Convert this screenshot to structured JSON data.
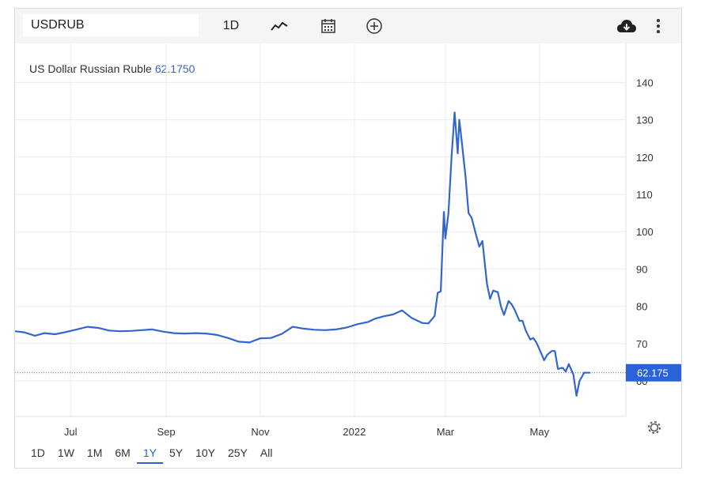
{
  "toolbar": {
    "symbol_value": "USDRUB",
    "interval_label": "1D",
    "icons": [
      "line-chart-icon",
      "calendar-icon",
      "plus-circle-icon",
      "cloud-download-icon",
      "more-vertical-icon"
    ]
  },
  "legend": {
    "name": "US Dollar Russian Ruble",
    "value": "62.1750"
  },
  "price_tag": "62.175",
  "periods": [
    {
      "label": "1D",
      "active": false
    },
    {
      "label": "1W",
      "active": false
    },
    {
      "label": "1M",
      "active": false
    },
    {
      "label": "6M",
      "active": false
    },
    {
      "label": "1Y",
      "active": true
    },
    {
      "label": "5Y",
      "active": false
    },
    {
      "label": "10Y",
      "active": false
    },
    {
      "label": "25Y",
      "active": false
    },
    {
      "label": "All",
      "active": false
    }
  ],
  "colors": {
    "line": "#3366cc",
    "accent": "#2962d9",
    "price_tag_bg": "#2962d9",
    "grid": "#ececec"
  },
  "chart_data": {
    "type": "line",
    "title": "US Dollar Russian Ruble",
    "x_tick_labels": [
      "Jul",
      "Sep",
      "Nov",
      "2022",
      "Mar",
      "May"
    ],
    "x_tick_dates": [
      "2021-07-01",
      "2021-09-01",
      "2021-11-01",
      "2022-01-01",
      "2022-03-01",
      "2022-05-01"
    ],
    "y_ticks": [
      60,
      70,
      80,
      90,
      100,
      110,
      120,
      130,
      140
    ],
    "ylim": [
      50,
      145
    ],
    "xlim": [
      "2021-05-26",
      "2022-06-26"
    ],
    "grid": true,
    "last_value": 62.175,
    "series": [
      {
        "x": [
          "2021-05-26",
          "2021-06-01",
          "2021-06-08",
          "2021-06-14",
          "2021-06-21",
          "2021-06-28",
          "2021-07-05",
          "2021-07-12",
          "2021-07-19",
          "2021-07-26",
          "2021-08-02",
          "2021-08-09",
          "2021-08-16",
          "2021-08-23",
          "2021-08-30",
          "2021-09-06",
          "2021-09-13",
          "2021-09-20",
          "2021-09-27",
          "2021-10-04",
          "2021-10-11",
          "2021-10-18",
          "2021-10-25",
          "2021-11-01",
          "2021-11-08",
          "2021-11-15",
          "2021-11-22",
          "2021-11-29",
          "2021-12-06",
          "2021-12-13",
          "2021-12-20",
          "2021-12-27",
          "2022-01-03",
          "2022-01-10",
          "2022-01-14",
          "2022-01-20",
          "2022-01-26",
          "2022-02-01",
          "2022-02-07",
          "2022-02-14",
          "2022-02-18",
          "2022-02-22",
          "2022-02-24",
          "2022-02-26",
          "2022-02-28",
          "2022-03-01",
          "2022-03-03",
          "2022-03-05",
          "2022-03-07",
          "2022-03-09",
          "2022-03-10",
          "2022-03-11",
          "2022-03-14",
          "2022-03-16",
          "2022-03-18",
          "2022-03-21",
          "2022-03-23",
          "2022-03-25",
          "2022-03-28",
          "2022-03-30",
          "2022-04-01",
          "2022-04-04",
          "2022-04-06",
          "2022-04-08",
          "2022-04-11",
          "2022-04-13",
          "2022-04-15",
          "2022-04-18",
          "2022-04-20",
          "2022-04-22",
          "2022-04-25",
          "2022-04-27",
          "2022-04-29",
          "2022-05-02",
          "2022-05-04",
          "2022-05-06",
          "2022-05-09",
          "2022-05-11",
          "2022-05-13",
          "2022-05-16",
          "2022-05-18",
          "2022-05-20",
          "2022-05-23",
          "2022-05-25",
          "2022-05-27",
          "2022-05-30",
          "2022-06-01",
          "2022-06-03"
        ],
        "values": [
          73.3,
          73.0,
          72.1,
          72.8,
          72.5,
          73.1,
          73.8,
          74.5,
          74.2,
          73.5,
          73.3,
          73.4,
          73.6,
          73.8,
          73.2,
          72.8,
          72.7,
          72.8,
          72.7,
          72.3,
          71.5,
          70.5,
          70.3,
          71.4,
          71.5,
          72.6,
          74.5,
          74.0,
          73.7,
          73.6,
          73.8,
          74.3,
          75.2,
          75.8,
          76.6,
          77.3,
          77.8,
          78.9,
          76.9,
          75.5,
          75.4,
          77.4,
          83.6,
          84.0,
          105.3,
          98.2,
          105.0,
          120.0,
          132.0,
          121.0,
          130.0,
          126.5,
          115.0,
          105.0,
          103.7,
          99.0,
          96.0,
          97.5,
          86.0,
          82.0,
          84.2,
          83.8,
          80.0,
          77.7,
          81.4,
          80.5,
          79.0,
          76.1,
          76.1,
          73.6,
          71.1,
          71.5,
          70.3,
          67.5,
          65.5,
          67.0,
          68.0,
          68.0,
          63.2,
          63.5,
          62.5,
          64.5,
          61.7,
          56.0,
          60.0,
          62.2,
          62.175,
          62.175
        ]
      }
    ]
  }
}
